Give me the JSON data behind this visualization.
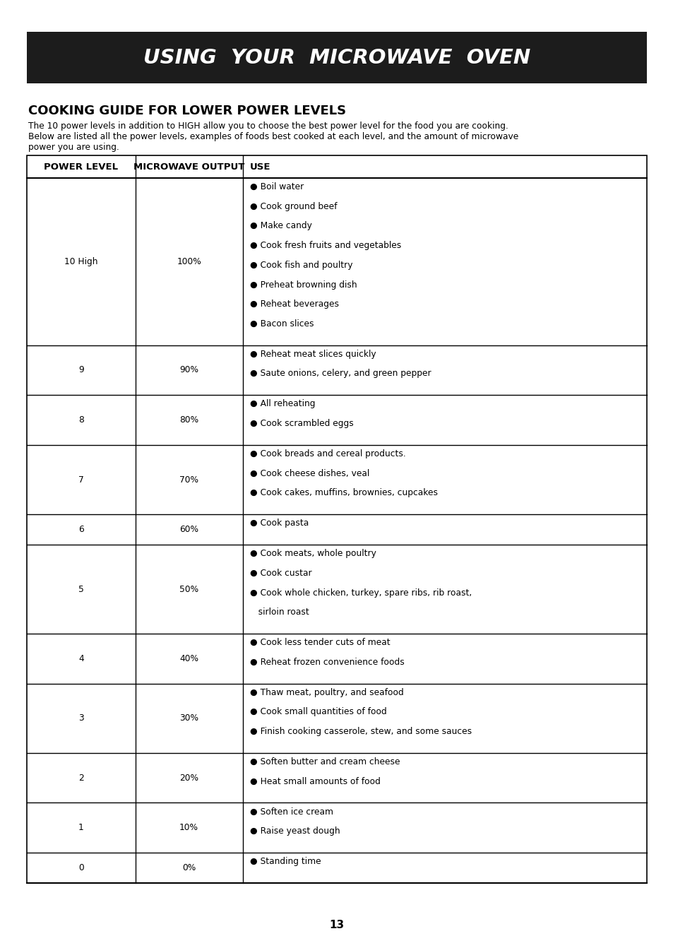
{
  "page_bg": "#ffffff",
  "header_bg": "#1c1c1c",
  "header_text": "USING  YOUR  MICROWAVE  OVEN",
  "header_text_color": "#ffffff",
  "section_title": "COOKING GUIDE FOR LOWER POWER LEVELS",
  "intro_line1": "The 10 power levels in addition to HIGH allow you to choose the best power level for the food you are cooking.",
  "intro_line2": "Below are listed all the power levels, examples of foods best cooked at each level, and the amount of microwave",
  "intro_line3": "power you are using.",
  "col_headers": [
    "POWER LEVEL",
    "MICROWAVE OUTPUT",
    "USE"
  ],
  "rows": [
    {
      "level": "10 High",
      "output": "100%",
      "use": [
        "● Boil water",
        "● Cook ground beef",
        "● Make candy",
        "● Cook fresh fruits and vegetables",
        "● Cook fish and poultry",
        "● Preheat browning dish",
        "● Reheat beverages",
        "● Bacon slices"
      ]
    },
    {
      "level": "9",
      "output": "90%",
      "use": [
        "● Reheat meat slices quickly",
        "● Saute onions, celery, and green pepper"
      ]
    },
    {
      "level": "8",
      "output": "80%",
      "use": [
        "● All reheating",
        "● Cook scrambled eggs"
      ]
    },
    {
      "level": "7",
      "output": "70%",
      "use": [
        "● Cook breads and cereal products.",
        "● Cook cheese dishes, veal",
        "● Cook cakes, muffins, brownies, cupcakes"
      ]
    },
    {
      "level": "6",
      "output": "60%",
      "use": [
        "● Cook pasta"
      ]
    },
    {
      "level": "5",
      "output": "50%",
      "use": [
        "● Cook meats, whole poultry",
        "● Cook custar",
        "● Cook whole chicken, turkey, spare ribs, rib roast,",
        "   sirloin roast"
      ]
    },
    {
      "level": "4",
      "output": "40%",
      "use": [
        "● Cook less tender cuts of meat",
        "● Reheat frozen convenience foods"
      ]
    },
    {
      "level": "3",
      "output": "30%",
      "use": [
        "● Thaw meat, poultry, and seafood",
        "● Cook small quantities of food",
        "● Finish cooking casserole, stew, and some sauces"
      ]
    },
    {
      "level": "2",
      "output": "20%",
      "use": [
        "● Soften butter and cream cheese",
        "● Heat small amounts of food"
      ]
    },
    {
      "level": "1",
      "output": "10%",
      "use": [
        "● Soften ice cream",
        "● Raise yeast dough"
      ]
    },
    {
      "level": "0",
      "output": "0%",
      "use": [
        "● Standing time"
      ]
    }
  ],
  "page_number": "13",
  "row_line_counts": [
    8,
    2,
    2,
    3,
    1,
    4,
    2,
    3,
    2,
    2,
    1
  ]
}
